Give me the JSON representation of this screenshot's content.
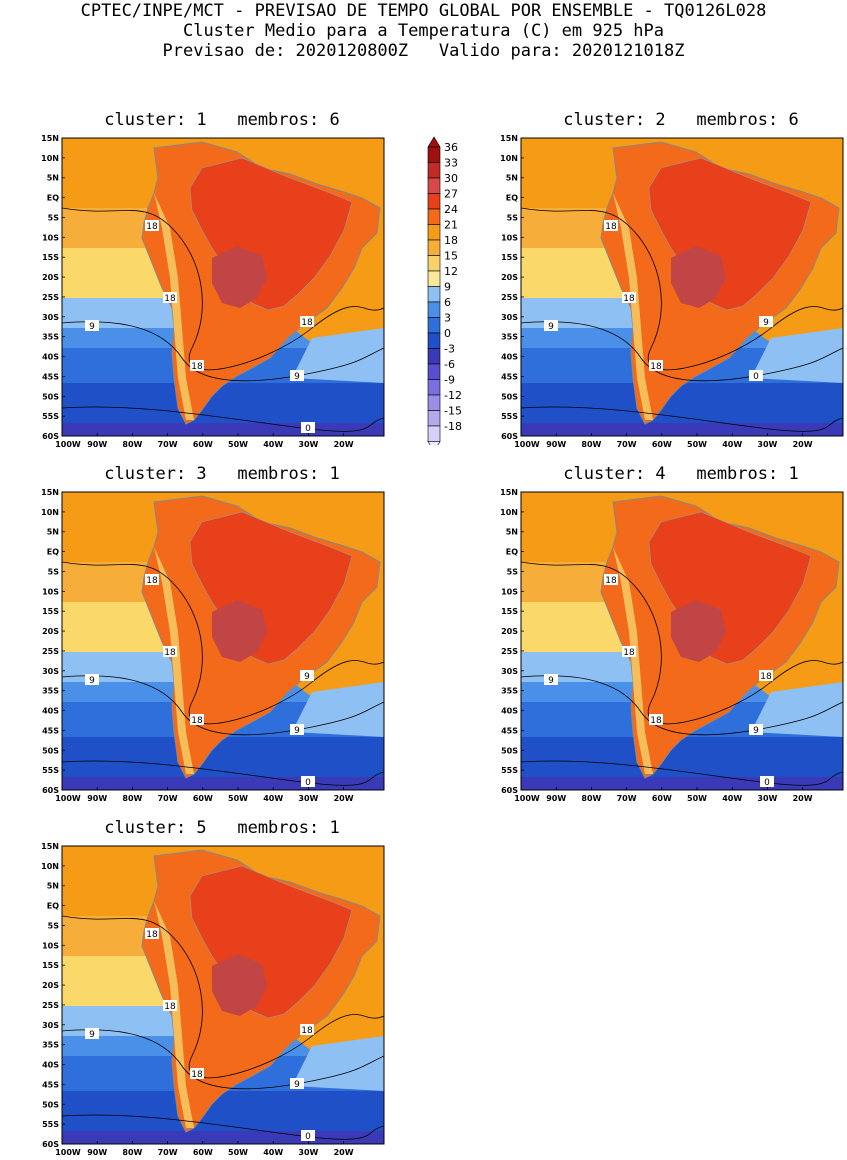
{
  "header": {
    "line1": "CPTEC/INPE/MCT - PREVISAO DE TEMPO GLOBAL POR ENSEMBLE - TQ0126L028",
    "line2": "Cluster Medio para a Temperatura (C) em 925 hPa",
    "line3": "Previsao de: 2020120800Z   Valido para: 2020121018Z"
  },
  "axes": {
    "lat_labels": [
      "15N",
      "10N",
      "5N",
      "EQ",
      "5S",
      "10S",
      "15S",
      "20S",
      "25S",
      "30S",
      "35S",
      "40S",
      "45S",
      "50S",
      "55S",
      "60S"
    ],
    "lon_labels": [
      "100W",
      "90W",
      "80W",
      "70W",
      "60W",
      "50W",
      "40W",
      "30W",
      "20W"
    ]
  },
  "colorbar": {
    "levels": [
      "36",
      "33",
      "30",
      "27",
      "24",
      "21",
      "18",
      "15",
      "12",
      "9",
      "6",
      "3",
      "0",
      "-3",
      "-6",
      "-9",
      "-12",
      "-15",
      "-18"
    ],
    "colors": [
      "#a01010",
      "#c22a2a",
      "#d84848",
      "#e8401a",
      "#f26a1a",
      "#f59b16",
      "#f7ad3a",
      "#f6d36a",
      "#fbe89a",
      "#8ec0f4",
      "#4a90e8",
      "#2f6fdc",
      "#1f50c8",
      "#3a3ab8",
      "#5a4ed0",
      "#7a6ee0",
      "#9a8ee8",
      "#b4a8ee",
      "#d8d0f8"
    ]
  },
  "panels": [
    {
      "title": "cluster: 1   membros: 6",
      "contour_labels": [
        "18",
        "18",
        "18",
        "18",
        "9",
        "9",
        "0"
      ]
    },
    {
      "title": "cluster: 2   membros: 6",
      "contour_labels": [
        "18",
        "18",
        "18",
        "9",
        "9",
        "0"
      ]
    },
    {
      "title": "cluster: 3   membros: 1",
      "contour_labels": [
        "18",
        "18",
        "18",
        "9",
        "9",
        "9",
        "0"
      ]
    },
    {
      "title": "cluster: 4   membros: 1",
      "contour_labels": [
        "18",
        "18",
        "18",
        "18",
        "9",
        "9",
        "0"
      ]
    },
    {
      "title": "cluster: 5   membros: 1",
      "contour_labels": [
        "18",
        "18",
        "18",
        "18",
        "9",
        "9",
        "0"
      ]
    }
  ]
}
